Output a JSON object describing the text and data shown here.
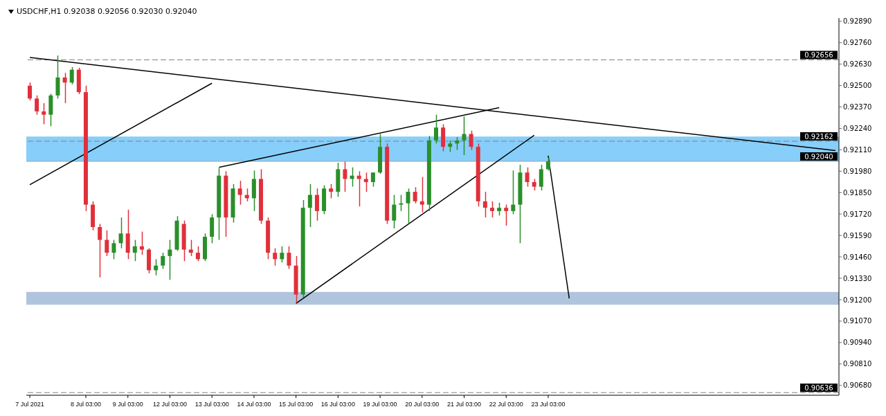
{
  "chart_data": {
    "type": "candlestick",
    "title": "USDCHF,H1 0.92038 0.92056 0.92030 0.92040",
    "categories": [
      "7 Jul 2021",
      null,
      null,
      null,
      null,
      null,
      null,
      null,
      "8 Jul 03:00",
      null,
      null,
      null,
      null,
      null,
      "9 Jul 03:00",
      null,
      null,
      null,
      null,
      null,
      "12 Jul 03:00",
      null,
      null,
      null,
      null,
      null,
      "13 Jul 03:00",
      null,
      null,
      null,
      null,
      null,
      "14 Jul 03:00",
      null,
      null,
      null,
      null,
      null,
      "15 Jul 03:00",
      null,
      null,
      null,
      null,
      null,
      "16 Jul 03:00",
      null,
      null,
      null,
      null,
      null,
      "19 Jul 03:00",
      null,
      null,
      null,
      null,
      null,
      "20 Jul 03:00",
      null,
      null,
      null,
      null,
      null,
      "21 Jul 03:00",
      null,
      null,
      null,
      null,
      null,
      "22 Jul 03:00",
      null,
      null,
      null,
      null,
      null,
      "23 Jul 03:00",
      null,
      null,
      null,
      null,
      null,
      null,
      null,
      null,
      null,
      null,
      null,
      null,
      null,
      null,
      null,
      null,
      null,
      null,
      null,
      null,
      null,
      null,
      null,
      null,
      null,
      null,
      null,
      null,
      null,
      null,
      null,
      null,
      null,
      null,
      null,
      null,
      null,
      null,
      null,
      null,
      null
    ],
    "ohlc": [
      [
        0.92499,
        0.92518,
        0.92409,
        0.92421
      ],
      [
        0.92421,
        0.9244,
        0.92323,
        0.92343
      ],
      [
        0.92343,
        0.92393,
        0.92265,
        0.92323
      ],
      [
        0.92323,
        0.9245,
        0.92253,
        0.9244
      ],
      [
        0.9244,
        0.92682,
        0.92421,
        0.92549
      ],
      [
        0.92549,
        0.92577,
        0.92393,
        0.92518
      ],
      [
        0.92518,
        0.92612,
        0.92507,
        0.92596
      ],
      [
        0.92596,
        0.92608,
        0.92448,
        0.9246
      ],
      [
        0.9246,
        0.92499,
        0.91738,
        0.91777
      ],
      [
        0.91777,
        0.91797,
        0.91621,
        0.91641
      ],
      [
        0.91641,
        0.9166,
        0.91336,
        0.91563
      ],
      [
        0.91563,
        0.91621,
        0.91465,
        0.91485
      ],
      [
        0.91485,
        0.91563,
        0.91446,
        0.91543
      ],
      [
        0.91543,
        0.91699,
        0.91512,
        0.91602
      ],
      [
        0.91602,
        0.91746,
        0.91446,
        0.91485
      ],
      [
        0.91485,
        0.91563,
        0.91434,
        0.91524
      ],
      [
        0.91524,
        0.91613,
        0.91473,
        0.91504
      ],
      [
        0.91504,
        0.91512,
        0.9136,
        0.91379
      ],
      [
        0.91379,
        0.91446,
        0.91348,
        0.91407
      ],
      [
        0.91407,
        0.91485,
        0.91387,
        0.91465
      ],
      [
        0.91465,
        0.91563,
        0.91321,
        0.91504
      ],
      [
        0.91504,
        0.91707,
        0.91496,
        0.9168
      ],
      [
        0.9166,
        0.9168,
        0.91434,
        0.91504
      ],
      [
        0.91504,
        0.91563,
        0.91465,
        0.91485
      ],
      [
        0.91485,
        0.91524,
        0.91434,
        0.91446
      ],
      [
        0.91446,
        0.91602,
        0.91434,
        0.91582
      ],
      [
        0.91582,
        0.91719,
        0.91543,
        0.91699
      ],
      [
        0.91699,
        0.91999,
        0.91563,
        0.91953
      ],
      [
        0.91953,
        0.9198,
        0.91582,
        0.91699
      ],
      [
        0.91699,
        0.91902,
        0.91668,
        0.91875
      ],
      [
        0.91875,
        0.91922,
        0.91777,
        0.91836
      ],
      [
        0.91836,
        0.91875,
        0.91797,
        0.91816
      ],
      [
        0.91816,
        0.91984,
        0.91738,
        0.91933
      ],
      [
        0.91933,
        0.91992,
        0.9166,
        0.9168
      ],
      [
        0.9168,
        0.91699,
        0.91446,
        0.91485
      ],
      [
        0.91485,
        0.91512,
        0.91407,
        0.91446
      ],
      [
        0.91446,
        0.91524,
        0.91426,
        0.91485
      ],
      [
        0.91485,
        0.91524,
        0.91387,
        0.91407
      ],
      [
        0.91407,
        0.91465,
        0.9118,
        0.91231
      ],
      [
        0.91231,
        0.91805,
        0.91212,
        0.91758
      ],
      [
        0.91758,
        0.91902,
        0.91641,
        0.91836
      ],
      [
        0.91836,
        0.91875,
        0.9168,
        0.91738
      ],
      [
        0.91738,
        0.91894,
        0.91719,
        0.91875
      ],
      [
        0.91875,
        0.91902,
        0.91816,
        0.91855
      ],
      [
        0.91855,
        0.92031,
        0.91824,
        0.91992
      ],
      [
        0.91992,
        0.92039,
        0.91855,
        0.91933
      ],
      [
        0.91933,
        0.92003,
        0.91886,
        0.91953
      ],
      [
        0.91953,
        0.9198,
        0.91766,
        0.91933
      ],
      [
        0.91933,
        0.91972,
        0.91855,
        0.91914
      ],
      [
        0.91914,
        0.91972,
        0.91886,
        0.91972
      ],
      [
        0.91972,
        0.92206,
        0.91964,
        0.92128
      ],
      [
        0.92128,
        0.92148,
        0.9166,
        0.9168
      ],
      [
        0.9168,
        0.91836,
        0.91633,
        0.91777
      ],
      [
        0.91777,
        0.91836,
        0.91738,
        0.91785
      ],
      [
        0.91785,
        0.91875,
        0.9166,
        0.91855
      ],
      [
        0.91855,
        0.91883,
        0.91785,
        0.91797
      ],
      [
        0.91797,
        0.91945,
        0.9173,
        0.91777
      ],
      [
        0.91777,
        0.92194,
        0.91738,
        0.92167
      ],
      [
        0.92167,
        0.92323,
        0.92148,
        0.92245
      ],
      [
        0.92245,
        0.92265,
        0.92101,
        0.92128
      ],
      [
        0.92128,
        0.92167,
        0.92097,
        0.92148
      ],
      [
        0.92148,
        0.92187,
        0.92109,
        0.92167
      ],
      [
        0.92167,
        0.92312,
        0.92078,
        0.92206
      ],
      [
        0.92206,
        0.92226,
        0.92109,
        0.92128
      ],
      [
        0.92128,
        0.92148,
        0.91766,
        0.91797
      ],
      [
        0.91797,
        0.91855,
        0.91699,
        0.91758
      ],
      [
        0.91758,
        0.91797,
        0.91699,
        0.91738
      ],
      [
        0.91738,
        0.91789,
        0.91711,
        0.91758
      ],
      [
        0.91758,
        0.91777,
        0.91649,
        0.91738
      ],
      [
        0.91738,
        0.91984,
        0.91719,
        0.91777
      ],
      [
        0.91777,
        0.92019,
        0.91543,
        0.91972
      ],
      [
        0.91972,
        0.92003,
        0.91886,
        0.91914
      ],
      [
        0.91914,
        0.91933,
        0.91863,
        0.91886
      ],
      [
        0.91886,
        0.92019,
        0.91863,
        0.91992
      ],
      [
        0.91992,
        0.92062,
        0.91984,
        0.9204
      ],
      null,
      null,
      null,
      null,
      null,
      null,
      null,
      null,
      null,
      null,
      null,
      null,
      null,
      null,
      null,
      null,
      null,
      null,
      null,
      null,
      null,
      null,
      null,
      null,
      null,
      null,
      null,
      null,
      null,
      null,
      null,
      null,
      null,
      null,
      null,
      null,
      null,
      null,
      null,
      null,
      null
    ],
    "series": [
      {
        "type": "line",
        "color": "#000000",
        "values": [
          0.9267,
          null,
          null,
          null,
          null,
          null,
          null,
          null,
          null,
          null,
          null,
          null,
          null,
          null,
          null,
          null,
          null,
          null,
          null,
          null,
          null,
          null,
          null,
          null,
          null,
          null,
          null,
          null,
          null,
          null,
          null,
          null,
          null,
          null,
          null,
          null,
          null,
          null,
          null,
          null,
          null,
          null,
          null,
          null,
          null,
          null,
          null,
          null,
          null,
          null,
          null,
          null,
          null,
          null,
          null,
          null,
          null,
          null,
          null,
          null,
          null,
          null,
          null,
          null,
          null,
          null,
          null,
          null,
          null,
          null,
          null,
          null,
          null,
          null,
          null,
          null,
          null,
          null,
          null,
          null,
          null,
          null,
          null,
          null,
          null,
          null,
          null,
          null,
          null,
          null,
          null,
          null,
          null,
          null,
          null,
          null,
          null,
          null,
          null,
          null,
          null,
          null,
          null,
          null,
          null,
          null,
          null,
          null,
          null,
          null,
          null,
          null,
          null,
          null,
          null,
          0.92105
        ]
      },
      {
        "type": "line",
        "color": "#000000",
        "values": [
          0.91898,
          null,
          null,
          null,
          null,
          null,
          null,
          null,
          null,
          null,
          null,
          null,
          null,
          null,
          null,
          null,
          null,
          null,
          null,
          null,
          null,
          null,
          null,
          null,
          null,
          null,
          0.92514,
          null,
          null,
          null,
          null,
          null,
          null,
          null,
          null,
          null,
          null,
          null,
          null,
          null,
          null,
          null,
          null,
          null,
          null,
          null,
          null,
          null,
          null,
          null,
          null,
          null,
          null,
          null,
          null,
          null,
          null,
          null,
          null,
          null,
          null,
          null,
          null,
          null,
          null,
          null,
          null,
          null,
          null,
          null,
          null,
          null,
          null,
          null,
          null,
          null,
          null,
          null,
          null,
          null,
          null,
          null,
          null,
          null,
          null,
          null,
          null,
          null,
          null,
          null,
          null,
          null,
          null,
          null,
          null,
          null,
          null,
          null,
          null,
          null,
          null,
          null,
          null,
          null,
          null,
          null,
          null,
          null,
          null,
          null,
          null,
          null,
          null,
          null,
          null,
          null
        ]
      },
      {
        "type": "line",
        "color": "#000000",
        "values": [
          null,
          null,
          null,
          null,
          null,
          null,
          null,
          null,
          null,
          null,
          null,
          null,
          null,
          null,
          null,
          null,
          null,
          null,
          null,
          null,
          null,
          null,
          null,
          null,
          null,
          null,
          null,
          0.92003,
          null,
          null,
          null,
          null,
          null,
          null,
          null,
          null,
          null,
          null,
          null,
          null,
          null,
          null,
          null,
          null,
          null,
          null,
          null,
          null,
          null,
          null,
          null,
          null,
          null,
          null,
          null,
          null,
          null,
          null,
          null,
          null,
          null,
          null,
          null,
          null,
          null,
          null,
          null,
          0.92366,
          null,
          null,
          null,
          null,
          null,
          null,
          null,
          null,
          null,
          null,
          null,
          null,
          null,
          null,
          null,
          null,
          null,
          null,
          null,
          null,
          null,
          null,
          null,
          null,
          null,
          null,
          null,
          null,
          null,
          null,
          null,
          null,
          null,
          null,
          null,
          null,
          null,
          null,
          null,
          null,
          null,
          null,
          null,
          null,
          null,
          null,
          null,
          null
        ]
      },
      {
        "type": "line",
        "color": "#000000",
        "values": [
          null,
          null,
          null,
          null,
          null,
          null,
          null,
          null,
          null,
          null,
          null,
          null,
          null,
          null,
          null,
          null,
          null,
          null,
          null,
          null,
          null,
          null,
          null,
          null,
          null,
          null,
          null,
          null,
          null,
          null,
          null,
          null,
          null,
          null,
          null,
          null,
          null,
          null,
          0.91177,
          null,
          null,
          null,
          null,
          null,
          null,
          null,
          null,
          null,
          null,
          null,
          null,
          null,
          null,
          null,
          null,
          null,
          null,
          null,
          null,
          null,
          null,
          null,
          null,
          null,
          null,
          null,
          null,
          null,
          null,
          null,
          null,
          null,
          0.92198,
          null,
          null,
          null,
          null,
          null,
          null,
          null,
          null,
          null,
          null,
          null,
          null,
          null,
          null,
          null,
          null,
          null,
          null,
          null,
          null,
          null,
          null,
          null,
          null,
          null,
          null,
          null,
          null,
          null,
          null,
          null,
          null,
          null,
          null,
          null,
          null,
          null,
          null,
          null,
          null,
          null,
          null,
          null
        ]
      },
      {
        "type": "line",
        "color": "#000000",
        "values": [
          null,
          null,
          null,
          null,
          null,
          null,
          null,
          null,
          null,
          null,
          null,
          null,
          null,
          null,
          null,
          null,
          null,
          null,
          null,
          null,
          null,
          null,
          null,
          null,
          null,
          null,
          null,
          null,
          null,
          null,
          null,
          null,
          null,
          null,
          null,
          null,
          null,
          null,
          null,
          null,
          null,
          null,
          null,
          null,
          null,
          null,
          null,
          null,
          null,
          null,
          null,
          null,
          null,
          null,
          null,
          null,
          null,
          null,
          null,
          null,
          null,
          null,
          null,
          null,
          null,
          null,
          null,
          null,
          null,
          null,
          null,
          null,
          null,
          null,
          0.92074,
          null,
          null,
          0.91208,
          null,
          null,
          null,
          null,
          null,
          null,
          null,
          null,
          null,
          null,
          null,
          null,
          null,
          null,
          null,
          null,
          null,
          null,
          null,
          null,
          null,
          null,
          null,
          null,
          null,
          null,
          null,
          null,
          null,
          null,
          null,
          null,
          null,
          null,
          null,
          null,
          null,
          null
        ]
      }
    ],
    "ylim": [
      0.9062,
      0.9291
    ],
    "yticks": [
      {
        "value": 0.9289,
        "label": "0.92890"
      },
      {
        "value": 0.9276,
        "label": "0.92760"
      },
      {
        "value": 0.9263,
        "label": "0.92630"
      },
      {
        "value": 0.925,
        "label": "0.92500"
      },
      {
        "value": 0.9237,
        "label": "0.92370"
      },
      {
        "value": 0.9224,
        "label": "0.92240"
      },
      {
        "value": 0.9211,
        "label": "0.92110"
      },
      {
        "value": 0.9198,
        "label": "0.91980"
      },
      {
        "value": 0.9185,
        "label": "0.91850"
      },
      {
        "value": 0.9172,
        "label": "0.91720"
      },
      {
        "value": 0.9159,
        "label": "0.91590"
      },
      {
        "value": 0.9146,
        "label": "0.91460"
      },
      {
        "value": 0.9133,
        "label": "0.91330"
      },
      {
        "value": 0.912,
        "label": "0.91200"
      },
      {
        "value": 0.9107,
        "label": "0.91070"
      },
      {
        "value": 0.9094,
        "label": "0.90940"
      },
      {
        "value": 0.9081,
        "label": "0.90810"
      },
      {
        "value": 0.9068,
        "label": "0.90680"
      }
    ],
    "bands": [
      {
        "axis": "y",
        "from": 0.9204,
        "to": 0.9219,
        "color": "#87cefa"
      },
      {
        "axis": "y",
        "from": 0.91169,
        "to": 0.91247,
        "color": "#b0c4de"
      }
    ],
    "ref_lines": [
      {
        "axis": "y",
        "value": 0.92656,
        "label": "0.92656",
        "color": "#808080",
        "line_style": "dashed"
      },
      {
        "axis": "y",
        "value": 0.92162,
        "label": "0.92162",
        "color": "#808080",
        "line_style": "dashed"
      },
      {
        "axis": "y",
        "value": 0.9204,
        "label": "0.92040",
        "color": "#a0a0a0",
        "line_style": "solid"
      },
      {
        "axis": "y",
        "value": 0.90636,
        "label": "0.90636",
        "color": "#808080",
        "line_style": "dashed"
      }
    ]
  }
}
